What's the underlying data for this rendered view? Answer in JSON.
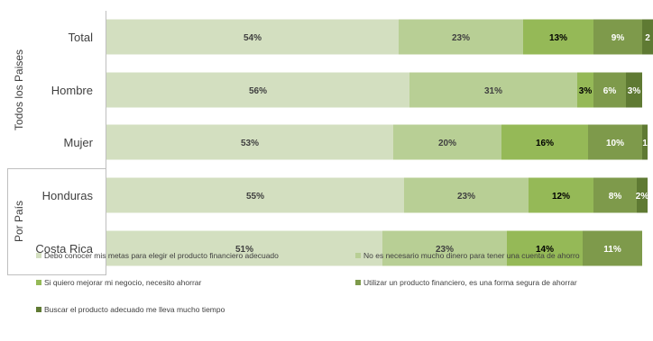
{
  "chart_data": {
    "type": "bar",
    "orientation": "horizontal",
    "stacked": true,
    "groups": [
      {
        "label": "Todos los Paises",
        "categories": [
          "Total",
          "Hombre",
          "Mujer"
        ]
      },
      {
        "label": "Por País",
        "categories": [
          "Honduras",
          "Costa Rica"
        ]
      }
    ],
    "categories": [
      "Total",
      "Hombre",
      "Mujer",
      "Honduras",
      "Costa Rica"
    ],
    "series": [
      {
        "name": "Debo conocer mis metas para elegir el producto financiero adecuado",
        "color": "#d3dfc0",
        "values": [
          54,
          56,
          53,
          55,
          51
        ],
        "labels": [
          "54%",
          "56%",
          "53%",
          "55%",
          "51%"
        ]
      },
      {
        "name": "No es necesario mucho dinero para tener una cuenta de ahorro",
        "color": "#b8cf95",
        "values": [
          23,
          31,
          20,
          23,
          23
        ],
        "labels": [
          "23%",
          "31%",
          "20%",
          "23%",
          "23%"
        ]
      },
      {
        "name": "Si quiero mejorar mi negocio, necesito ahorrar",
        "color": "#95b957",
        "values": [
          13,
          3,
          16,
          12,
          14
        ],
        "labels": [
          "13%",
          "3%",
          "16%",
          "12%",
          "14%"
        ]
      },
      {
        "name": "Utilizar un producto financiero, es una forma segura de ahorrar",
        "color": "#7e9a4b",
        "values": [
          9,
          6,
          10,
          8,
          11
        ],
        "labels": [
          "9%",
          "6%",
          "10%",
          "8%",
          "11%"
        ]
      },
      {
        "name": "Buscar el producto adecuado me lleva mucho tiempo",
        "color": "#5f7a33",
        "values": [
          2,
          3,
          1,
          2,
          0
        ],
        "labels": [
          "2",
          "3%",
          "1",
          "2%",
          ""
        ]
      }
    ],
    "label_colors": [
      "#404040",
      "#404040",
      "#000000",
      "#ffffff",
      "#ffffff"
    ],
    "xlim": [
      0,
      100
    ],
    "grid": false,
    "legend_position": "bottom"
  }
}
